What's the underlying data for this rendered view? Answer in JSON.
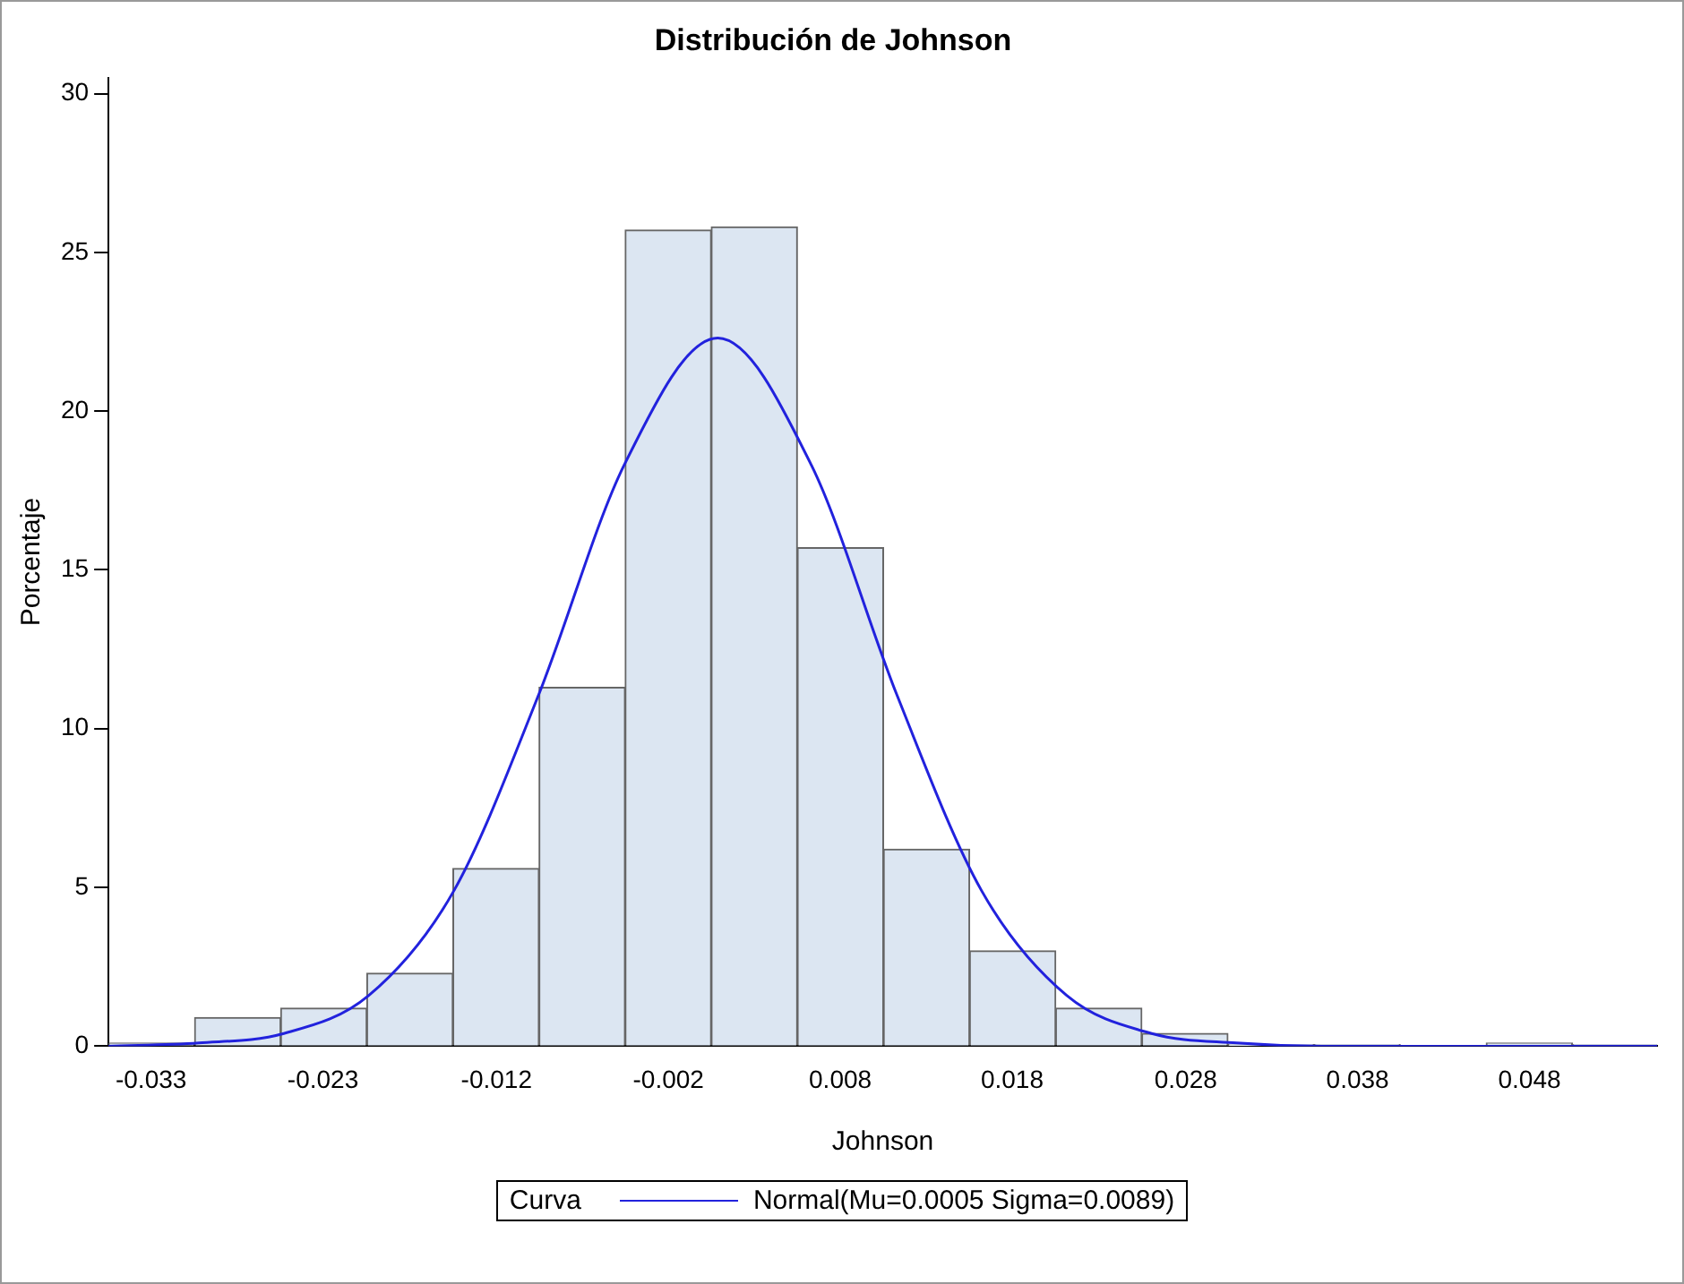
{
  "chart_data": {
    "type": "histogram",
    "title": "Distribución de Johnson",
    "xlabel": "Johnson",
    "ylabel": "Porcentaje",
    "legend_title": "Curva",
    "legend": "bottom",
    "grid": false,
    "bins": [
      -0.0353,
      -0.03024,
      -0.02518,
      -0.02012,
      -0.01506,
      -0.01,
      -0.00494,
      0.00012,
      0.00518,
      0.01024,
      0.0153,
      0.02036,
      0.02542,
      0.03048,
      0.03554,
      0.0406,
      0.04566,
      0.05072,
      0.05578
    ],
    "values": [
      0.1,
      0.9,
      1.2,
      2.3,
      5.6,
      11.3,
      25.7,
      25.8,
      15.7,
      6.2,
      3.0,
      1.2,
      0.4,
      0.05,
      0.05,
      0,
      0.1,
      0.05
    ],
    "color": "#dce6f2",
    "series": [
      {
        "type": "line",
        "name": "Normal(Mu=0.0005 Sigma=0.0089)",
        "color": "#2222dd",
        "x": [
          -0.0353,
          -0.03,
          -0.025,
          -0.02,
          -0.015,
          -0.01,
          -0.005,
          0.0005,
          0.006,
          0.011,
          0.016,
          0.021,
          0.026,
          0.031,
          0.036,
          0.045,
          0.0557
        ],
        "values": [
          0,
          0.1,
          0.4,
          1.6,
          4.9,
          11.1,
          18.3,
          22.3,
          18.3,
          11.1,
          4.9,
          1.6,
          0.4,
          0.1,
          0,
          0,
          0
        ]
      }
    ],
    "xlim": [
      -0.0353,
      0.0557
    ],
    "xticks": [
      {
        "value": -0.0328,
        "label": "-0.033"
      },
      {
        "value": -0.0227,
        "label": "-0.023"
      },
      {
        "value": -0.0125,
        "label": "-0.012"
      },
      {
        "value": -0.0024,
        "label": "-0.002"
      },
      {
        "value": 0.0077,
        "label": "0.008"
      },
      {
        "value": 0.0178,
        "label": "0.018"
      },
      {
        "value": 0.028,
        "label": "0.028"
      },
      {
        "value": 0.0381,
        "label": "0.038"
      },
      {
        "value": 0.0482,
        "label": "0.048"
      }
    ],
    "ylim": [
      0,
      30.5
    ],
    "yticks": [
      0,
      5,
      10,
      15,
      20,
      25,
      30
    ]
  }
}
